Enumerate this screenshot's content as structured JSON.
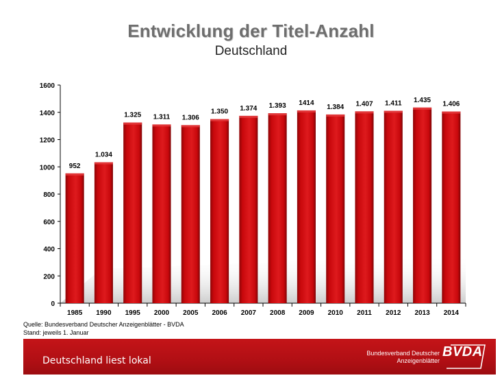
{
  "title": "Entwicklung der Titel-Anzahl",
  "subtitle": "Deutschland",
  "source_lines": [
    "Quelle: Bundesverband Deutscher Anzeigenblätter - BVDA",
    "Stand: jeweils 1. Januar"
  ],
  "footer": {
    "slogan": "Deutschland liest lokal",
    "org_line1": "Bundesverband Deutscher",
    "org_line2": "Anzeigenblätter",
    "logo_text": "BVDA"
  },
  "colors": {
    "bar": "#c8080c",
    "bar_dark": "#8e0507",
    "footer": "#b10f14"
  },
  "chart_data": {
    "type": "bar",
    "categories": [
      "1985",
      "1990",
      "1995",
      "2000",
      "2005",
      "2006",
      "2007",
      "2008",
      "2009",
      "2010",
      "2011",
      "2012",
      "2013",
      "2014"
    ],
    "values": [
      952,
      1034,
      1325,
      1311,
      1306,
      1350,
      1374,
      1393,
      1414,
      1384,
      1407,
      1411,
      1435,
      1406
    ],
    "data_labels": [
      "952",
      "1.034",
      "1.325",
      "1.311",
      "1.306",
      "1.350",
      "1.374",
      "1.393",
      "1414",
      "1.384",
      "1.407",
      "1.411",
      "1.435",
      "1.406"
    ],
    "yticks": [
      0,
      200,
      400,
      600,
      800,
      1000,
      1200,
      1400,
      1600
    ],
    "ylim": [
      0,
      1600
    ],
    "grid": false,
    "legend": "none"
  }
}
